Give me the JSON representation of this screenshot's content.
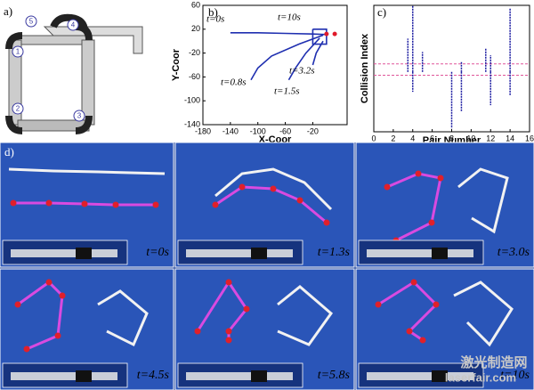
{
  "panel_a": {
    "label": "a)",
    "markers": [
      "1",
      "2",
      "3",
      "4",
      "5"
    ]
  },
  "chart_data": [
    {
      "type": "line",
      "label": "b)",
      "x_label": "X-Coor",
      "y_label": "Y-Coor",
      "xlim": [
        -180,
        30
      ],
      "ylim": [
        -140,
        60
      ],
      "xticks": [
        -180,
        -140,
        -100,
        -60,
        -20
      ],
      "yticks": [
        60,
        20,
        -20,
        -60,
        -100,
        -140
      ],
      "series": [
        {
          "color": "#1f2fb0",
          "x": [
            -140,
            -100,
            -60,
            -20,
            0
          ],
          "y": [
            14,
            14,
            13,
            12,
            11
          ]
        },
        {
          "color": "#1f2fb0",
          "x": [
            -5,
            -40,
            -80,
            -100,
            -110
          ],
          "y": [
            10,
            -5,
            -25,
            -45,
            -65
          ]
        },
        {
          "color": "#1f2fb0",
          "x": [
            -10,
            -30,
            -45,
            -55
          ],
          "y": [
            5,
            -20,
            -45,
            -65
          ]
        },
        {
          "color": "#1f2fb0",
          "x": [
            -5,
            -15,
            -20
          ],
          "y": [
            0,
            -20,
            -40
          ]
        },
        {
          "color": "#1f2fb0",
          "x": [
            -20,
            0,
            0,
            -20,
            -20
          ],
          "y": [
            20,
            20,
            -5,
            -5,
            20
          ]
        },
        {
          "color": "#e01a2a",
          "x": [
            0,
            12
          ],
          "y": [
            12,
            12
          ],
          "markers": true
        }
      ],
      "annotations": [
        "t=0s",
        "t=10s",
        "t=0.8s",
        "t=3.2s",
        "t=1.5s"
      ]
    },
    {
      "type": "stem",
      "label": "c)",
      "x_label": "Pair Number",
      "y_label": "Collision Index",
      "xlim": [
        0,
        16
      ],
      "ylim": [
        -0.9,
        1
      ],
      "xticks": [
        0,
        2,
        4,
        6,
        8,
        10,
        12,
        14,
        16
      ],
      "hlines": [
        0.12,
        -0.05
      ],
      "hline_color": "#e0559a",
      "series": [
        {
          "color": "#1a1aa0",
          "x": [
            3.5,
            4,
            5,
            9,
            11.5,
            12,
            14,
            4,
            8,
            9,
            12,
            14
          ],
          "values": [
            0.5,
            1,
            0.3,
            0.15,
            0.35,
            0.25,
            0.95,
            -0.3,
            -0.85,
            -0.6,
            -0.5,
            -0.35
          ]
        }
      ]
    }
  ],
  "panel_d": {
    "label": "d)",
    "captions": [
      "t=0s",
      "t=1.3s",
      "t=3.0s",
      "t=4.5s",
      "t=5.8s",
      "t=10s"
    ]
  },
  "watermark": {
    "title": "激光制造网",
    "url": "laserfair.com"
  }
}
